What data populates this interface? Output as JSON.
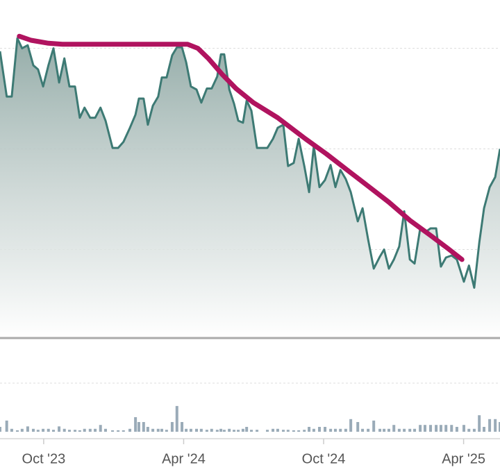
{
  "chart_data": {
    "type": "area",
    "x": [
      2023.594,
      2023.618,
      2023.636,
      2023.656,
      2023.673,
      2023.693,
      2023.713,
      2023.73,
      2023.748,
      2023.767,
      2023.785,
      2023.805,
      2023.824,
      2023.842,
      2023.862,
      2023.879,
      2023.896,
      2023.916,
      2023.934,
      2023.953,
      2023.971,
      2023.996,
      2024.016,
      2024.035,
      2024.058,
      2024.078,
      2024.09,
      2024.107,
      2024.122,
      2024.14,
      2024.159,
      2024.172,
      2024.189,
      2024.209,
      2024.226,
      2024.244,
      2024.259,
      2024.276,
      2024.296,
      2024.313,
      2024.333,
      2024.35,
      2024.37,
      2024.383,
      2024.395,
      2024.413,
      2024.43,
      2024.445,
      2024.462,
      2024.475,
      2024.492,
      2024.512,
      2024.549,
      2024.569,
      2024.586,
      2024.606,
      2024.623,
      2024.643,
      2024.661,
      2024.681,
      2024.698,
      2024.715,
      2024.735,
      2024.755,
      2024.775,
      2024.792,
      2024.81,
      2024.829,
      2024.847,
      2024.872,
      2024.889,
      2024.909,
      2024.929,
      2024.951,
      2024.966,
      2024.983,
      2025.001,
      2025.02,
      2025.038,
      2025.058,
      2025.075,
      2025.095,
      2025.112,
      2025.132,
      2025.152,
      2025.169,
      2025.187,
      2025.207,
      2025.226,
      2025.251,
      2025.269,
      2025.288,
      2025.306,
      2025.323,
      2025.343,
      2025.363,
      2025.38
    ],
    "values": [
      2.97,
      2.52,
      2.52,
      3.1,
      3.0,
      3.03,
      2.83,
      2.79,
      2.62,
      2.83,
      3.0,
      2.66,
      2.9,
      2.62,
      2.62,
      2.31,
      2.41,
      2.31,
      2.31,
      2.41,
      2.28,
      2.01,
      2.01,
      2.07,
      2.21,
      2.34,
      2.5,
      2.5,
      2.24,
      2.43,
      2.52,
      2.71,
      2.71,
      2.93,
      3.01,
      3.01,
      2.86,
      2.62,
      2.59,
      2.46,
      2.6,
      2.6,
      2.72,
      2.94,
      2.94,
      2.59,
      2.45,
      2.28,
      2.26,
      2.48,
      2.38,
      2.01,
      2.01,
      2.1,
      2.21,
      2.24,
      1.83,
      1.86,
      2.1,
      1.83,
      1.57,
      2.03,
      1.62,
      1.69,
      1.84,
      1.62,
      1.79,
      1.7,
      1.57,
      1.28,
      1.41,
      1.1,
      0.81,
      0.93,
      1.0,
      0.81,
      0.9,
      1.03,
      1.38,
      0.9,
      0.86,
      1.21,
      1.17,
      1.21,
      1.21,
      0.83,
      0.92,
      0.94,
      0.9,
      0.68,
      0.84,
      0.62,
      1.07,
      1.41,
      1.62,
      1.72,
      2.0
    ],
    "color": "#3d7a74",
    "ylim": [
      0.12,
      3.48
    ],
    "yticks": [
      1,
      2,
      3
    ],
    "grid": true,
    "xlim": [
      2023.594,
      2025.38
    ],
    "xticks": [
      {
        "value": 2023.75,
        "label": "Oct '23"
      },
      {
        "value": 2024.25,
        "label": "Apr '24"
      },
      {
        "value": 2024.75,
        "label": "Oct '24"
      },
      {
        "value": 2025.25,
        "label": "Apr '25"
      }
    ],
    "trend": {
      "x": [
        2023.663,
        2023.705,
        2023.767,
        2023.817,
        2024.264,
        2024.301,
        2024.338,
        2024.388,
        2024.437,
        2024.499,
        2024.586,
        2024.685,
        2024.76,
        2024.834,
        2024.909,
        2024.983,
        2025.058,
        2025.132,
        2025.194,
        2025.244
      ],
      "values": [
        3.12,
        3.08,
        3.05,
        3.04,
        3.04,
        3.0,
        2.9,
        2.74,
        2.6,
        2.46,
        2.31,
        2.1,
        1.95,
        1.79,
        1.63,
        1.47,
        1.29,
        1.14,
        1.01,
        0.9
      ],
      "color": "#b0135f"
    },
    "volume": {
      "values": [
        0.1,
        0.23,
        0.06,
        0.03,
        0.06,
        0.11,
        0.06,
        0.04,
        0.06,
        0.06,
        0.04,
        0.11,
        0.06,
        0.04,
        0.04,
        0.03,
        0.06,
        0.06,
        0.06,
        0.14,
        0.06,
        0.03,
        0.03,
        0.03,
        0.06,
        0.3,
        0.2,
        0.2,
        0.1,
        0.06,
        0.06,
        0.06,
        0.04,
        0.2,
        0.53,
        0.2,
        0.06,
        0.06,
        0.06,
        0.06,
        0.04,
        0.06,
        0.04,
        0.06,
        0.04,
        0.06,
        0.04,
        0.04,
        0.06,
        0.1,
        0.04,
        0.04,
        0.04,
        0.06,
        0.06,
        0.04,
        0.04,
        0.03,
        0.03,
        0.04,
        0.1,
        0.06,
        0.1,
        0.1,
        0.06,
        0.06,
        0.06,
        0.06,
        0.26,
        0.2,
        0.06,
        0.06,
        0.23,
        0.06,
        0.06,
        0.06,
        0.14,
        0.06,
        0.06,
        0.06,
        0.06,
        0.14,
        0.14,
        0.14,
        0.14,
        0.14,
        0.14,
        0.14,
        0.1,
        0.14,
        0.06,
        0.06,
        0.34,
        0.1,
        0.26,
        0.26,
        0.2
      ],
      "color": "#9aabb8",
      "ylim": [
        0,
        1
      ],
      "yticks": [
        1
      ]
    }
  }
}
